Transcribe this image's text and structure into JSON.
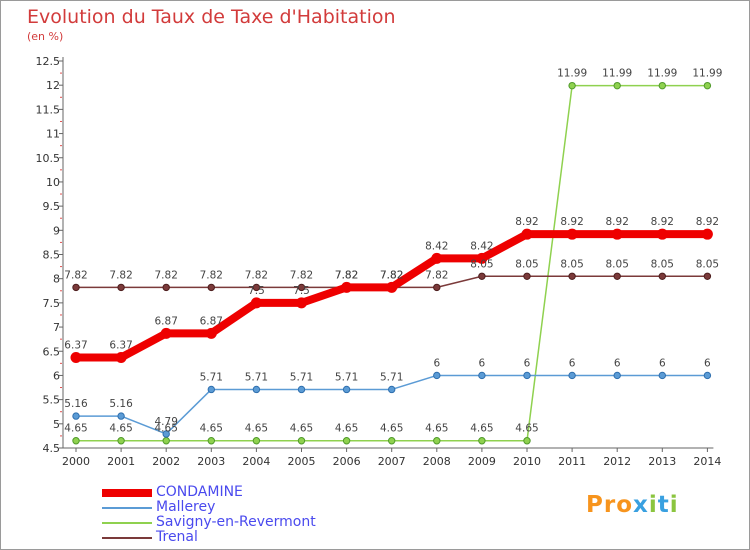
{
  "title": "Evolution du Taux de Taxe d'Habitation",
  "subtitle": "(en %)",
  "brand": {
    "text": "Proxiti",
    "colors": [
      "#f7941d",
      "#f7941d",
      "#f7941d",
      "#39a0e0",
      "#8bc53f",
      "#39a0e0",
      "#8bc53f"
    ]
  },
  "chart_data": {
    "type": "line",
    "x": [
      "2000",
      "2001",
      "2002",
      "2003",
      "2004",
      "2005",
      "2006",
      "2007",
      "2008",
      "2009",
      "2010",
      "2011",
      "2012",
      "2013",
      "2014"
    ],
    "ylim": [
      4.5,
      12.5
    ],
    "yticks": [
      "4.5",
      "5",
      "5.5",
      "6",
      "6.5",
      "7",
      "7.5",
      "8",
      "8.5",
      "9",
      "9.5",
      "10",
      "10.5",
      "11",
      "11.5",
      "12",
      "12.5"
    ],
    "grid": false,
    "legend_position": "bottom-left",
    "series": [
      {
        "name": "CONDAMINE",
        "color": "#ee0000",
        "width": 8,
        "values": [
          6.37,
          6.37,
          6.87,
          6.87,
          7.5,
          7.5,
          7.82,
          7.82,
          8.42,
          8.42,
          8.92,
          8.92,
          8.92,
          8.92,
          8.92
        ],
        "labels": [
          "6.37",
          "6.37",
          "6.87",
          "6.87",
          "7.5",
          "7.5",
          "7.82",
          "7.82",
          "8.42",
          "8.42",
          "8.92",
          "8.92",
          "8.92",
          "8.92",
          "8.92"
        ]
      },
      {
        "name": "Mallerey",
        "color": "#5b9bd5",
        "width": 1.5,
        "values": [
          5.16,
          5.16,
          4.79,
          5.71,
          5.71,
          5.71,
          5.71,
          5.71,
          6,
          6,
          6,
          6,
          6,
          6,
          6
        ],
        "labels": [
          "5.16",
          "5.16",
          "4.79",
          "5.71",
          "5.71",
          "5.71",
          "5.71",
          "5.71",
          "6",
          "6",
          "6",
          "6",
          "6",
          "6",
          "6"
        ]
      },
      {
        "name": "Savigny-en-Revermont",
        "color": "#8fd14f",
        "width": 1.5,
        "values": [
          4.65,
          4.65,
          4.65,
          4.65,
          4.65,
          4.65,
          4.65,
          4.65,
          4.65,
          4.65,
          4.65,
          11.99,
          11.99,
          11.99,
          11.99
        ],
        "labels": [
          "4.65",
          "4.65",
          "4.65",
          "4.65",
          "4.65",
          "4.65",
          "4.65",
          "4.65",
          "4.65",
          "4.65",
          "4.65",
          "11.99",
          "11.99",
          "11.99",
          "11.99"
        ]
      },
      {
        "name": "Trenal",
        "color": "#7b3a3a",
        "width": 1.5,
        "values": [
          7.82,
          7.82,
          7.82,
          7.82,
          7.82,
          7.82,
          7.82,
          7.82,
          7.82,
          8.05,
          8.05,
          8.05,
          8.05,
          8.05,
          8.05
        ],
        "labels": [
          "7.82",
          "7.82",
          "7.82",
          "7.82",
          "7.82",
          "7.82",
          "7.82",
          "7.82",
          "7.82",
          "8.05",
          "8.05",
          "8.05",
          "8.05",
          "8.05",
          "8.05"
        ]
      }
    ]
  }
}
